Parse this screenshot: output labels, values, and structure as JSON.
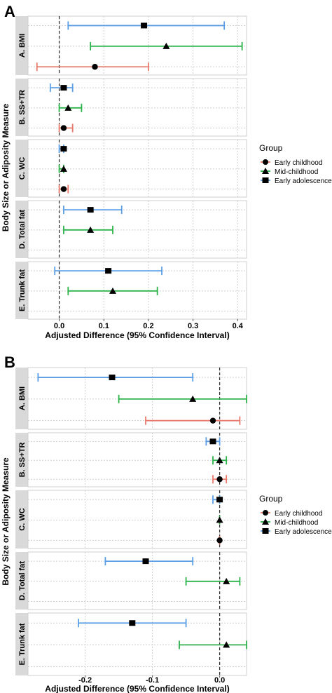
{
  "colors": {
    "early_childhood": "#e8796b",
    "mid_childhood": "#2db34a",
    "early_adolescence": "#5b9ee6",
    "strip_bg": "#d9d9d9",
    "panel_bg": "#ffffff",
    "grid": "#cfcfcf",
    "zero_line": "#333333"
  },
  "chart_data": [
    {
      "type": "forest",
      "panel_label": "A",
      "ylabel": "Body Size or Adiposity Measure",
      "xlabel": "Adjusted Difference (95% Confidence Interval)",
      "xlim": [
        -0.07,
        0.42
      ],
      "xticks": [
        0.0,
        0.1,
        0.2,
        0.3,
        0.4
      ],
      "xtick_labels": [
        "0.0",
        "0.1",
        "0.2",
        "0.3",
        "0.4"
      ],
      "legend": {
        "title": "Group",
        "position": "right",
        "entries": [
          "Early childhood",
          "Mid-childhood",
          "Early adolescence"
        ]
      },
      "measures": [
        {
          "label": "A. BMI",
          "estimates": [
            {
              "group": "Early childhood",
              "est": 0.08,
              "lo": -0.05,
              "hi": 0.2
            },
            {
              "group": "Mid-childhood",
              "est": 0.24,
              "lo": 0.07,
              "hi": 0.41
            },
            {
              "group": "Early adolescence",
              "est": 0.19,
              "lo": 0.02,
              "hi": 0.37
            }
          ]
        },
        {
          "label": "B. SS+TR",
          "estimates": [
            {
              "group": "Early childhood",
              "est": 0.01,
              "lo": 0.0,
              "hi": 0.03
            },
            {
              "group": "Mid-childhood",
              "est": 0.02,
              "lo": 0.0,
              "hi": 0.05
            },
            {
              "group": "Early adolescence",
              "est": 0.01,
              "lo": -0.02,
              "hi": 0.03
            }
          ]
        },
        {
          "label": "C. WC",
          "estimates": [
            {
              "group": "Early childhood",
              "est": 0.01,
              "lo": 0.0,
              "hi": 0.02
            },
            {
              "group": "Mid-childhood",
              "est": 0.01,
              "lo": 0.0,
              "hi": 0.01
            },
            {
              "group": "Early adolescence",
              "est": 0.01,
              "lo": 0.0,
              "hi": 0.01
            }
          ]
        },
        {
          "label": "D. Total fat",
          "estimates": [
            {
              "group": "Mid-childhood",
              "est": 0.07,
              "lo": 0.01,
              "hi": 0.12
            },
            {
              "group": "Early adolescence",
              "est": 0.07,
              "lo": 0.01,
              "hi": 0.14
            }
          ]
        },
        {
          "label": "E. Trunk fat",
          "estimates": [
            {
              "group": "Mid-childhood",
              "est": 0.12,
              "lo": 0.02,
              "hi": 0.22
            },
            {
              "group": "Early adolescence",
              "est": 0.11,
              "lo": -0.01,
              "hi": 0.23
            }
          ]
        }
      ]
    },
    {
      "type": "forest",
      "panel_label": "B",
      "ylabel": "Body Size or Adiposity Measure",
      "xlabel": "Adjusted Difference (95% Confidence Interval)",
      "xlim": [
        -0.285,
        0.04
      ],
      "xticks": [
        -0.2,
        -0.1,
        0.0
      ],
      "xtick_labels": [
        "-0.2",
        "-0.1",
        "0.0"
      ],
      "legend": {
        "title": "Group",
        "position": "right",
        "entries": [
          "Early childhood",
          "Mid-childhood",
          "Early adolescence"
        ]
      },
      "measures": [
        {
          "label": "A. BMI",
          "estimates": [
            {
              "group": "Early childhood",
              "est": -0.01,
              "lo": -0.11,
              "hi": 0.03
            },
            {
              "group": "Mid-childhood",
              "est": -0.04,
              "lo": -0.15,
              "hi": 0.04
            },
            {
              "group": "Early adolescence",
              "est": -0.16,
              "lo": -0.27,
              "hi": -0.04
            }
          ]
        },
        {
          "label": "B. SS+TR",
          "estimates": [
            {
              "group": "Early childhood",
              "est": 0.0,
              "lo": -0.01,
              "hi": 0.01
            },
            {
              "group": "Mid-childhood",
              "est": 0.0,
              "lo": -0.01,
              "hi": 0.01
            },
            {
              "group": "Early adolescence",
              "est": -0.01,
              "lo": -0.02,
              "hi": 0.0
            }
          ]
        },
        {
          "label": "C. WC",
          "estimates": [
            {
              "group": "Early childhood",
              "est": 0.0,
              "lo": 0.0,
              "hi": 0.0
            },
            {
              "group": "Mid-childhood",
              "est": 0.0,
              "lo": 0.0,
              "hi": 0.0
            },
            {
              "group": "Early adolescence",
              "est": 0.0,
              "lo": -0.01,
              "hi": 0.0
            }
          ]
        },
        {
          "label": "D. Total fat",
          "estimates": [
            {
              "group": "Mid-childhood",
              "est": 0.01,
              "lo": -0.05,
              "hi": 0.03
            },
            {
              "group": "Early adolescence",
              "est": -0.11,
              "lo": -0.17,
              "hi": -0.04
            }
          ]
        },
        {
          "label": "E. Trunk fat",
          "estimates": [
            {
              "group": "Mid-childhood",
              "est": 0.01,
              "lo": -0.06,
              "hi": 0.04
            },
            {
              "group": "Early adolescence",
              "est": -0.13,
              "lo": -0.21,
              "hi": -0.05
            }
          ]
        }
      ]
    }
  ]
}
